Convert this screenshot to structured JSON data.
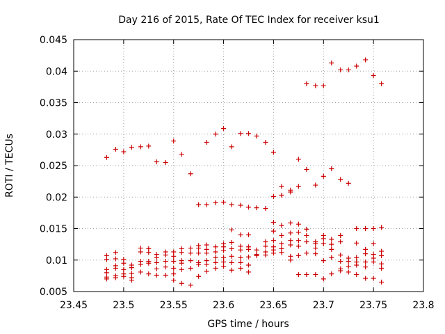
{
  "chart_data": {
    "type": "scatter",
    "title": "Day 216 of 2015, Rate Of TEC Index for receiver ksu1",
    "xlabel": "GPS time / hours",
    "ylabel": "ROTI / TECUs",
    "xlim": [
      23.45,
      23.8
    ],
    "ylim": [
      0.005,
      0.045
    ],
    "xticks": [
      "23.45",
      "23.5",
      "23.55",
      "23.6",
      "23.65",
      "23.7",
      "23.75",
      "23.8"
    ],
    "yticks": [
      "0.005",
      "0.01",
      "0.015",
      "0.02",
      "0.025",
      "0.03",
      "0.035",
      "0.04",
      "0.045"
    ],
    "grid": true,
    "marker_color": "#cc0000",
    "series": [
      {
        "name": "ksu1",
        "points": [
          [
            23.483,
            0.0263
          ],
          [
            23.492,
            0.0276
          ],
          [
            23.5,
            0.0272
          ],
          [
            23.508,
            0.0279
          ],
          [
            23.517,
            0.028
          ],
          [
            23.525,
            0.0281
          ],
          [
            23.533,
            0.0256
          ],
          [
            23.542,
            0.0255
          ],
          [
            23.55,
            0.0289
          ],
          [
            23.558,
            0.0268
          ],
          [
            23.567,
            0.0237
          ],
          [
            23.575,
            0.0188
          ],
          [
            23.583,
            0.0188
          ],
          [
            23.583,
            0.0287
          ],
          [
            23.592,
            0.0191
          ],
          [
            23.592,
            0.03
          ],
          [
            23.6,
            0.0192
          ],
          [
            23.6,
            0.0309
          ],
          [
            23.608,
            0.0188
          ],
          [
            23.608,
            0.028
          ],
          [
            23.617,
            0.0187
          ],
          [
            23.617,
            0.0301
          ],
          [
            23.625,
            0.0184
          ],
          [
            23.625,
            0.0301
          ],
          [
            23.633,
            0.0183
          ],
          [
            23.633,
            0.0297
          ],
          [
            23.642,
            0.0182
          ],
          [
            23.642,
            0.0287
          ],
          [
            23.65,
            0.0201
          ],
          [
            23.65,
            0.0271
          ],
          [
            23.658,
            0.0203
          ],
          [
            23.658,
            0.0217
          ],
          [
            23.667,
            0.0208
          ],
          [
            23.667,
            0.0211
          ],
          [
            23.675,
            0.0217
          ],
          [
            23.675,
            0.026
          ],
          [
            23.683,
            0.0244
          ],
          [
            23.683,
            0.038
          ],
          [
            23.692,
            0.0219
          ],
          [
            23.692,
            0.0377
          ],
          [
            23.7,
            0.0233
          ],
          [
            23.7,
            0.0377
          ],
          [
            23.708,
            0.0245
          ],
          [
            23.708,
            0.0413
          ],
          [
            23.717,
            0.0228
          ],
          [
            23.717,
            0.0402
          ],
          [
            23.725,
            0.0222
          ],
          [
            23.725,
            0.0402
          ],
          [
            23.733,
            0.0408
          ],
          [
            23.742,
            0.0418
          ],
          [
            23.75,
            0.0393
          ],
          [
            23.758,
            0.038
          ],
          [
            23.483,
            0.0107
          ],
          [
            23.483,
            0.0101
          ],
          [
            23.483,
            0.0085
          ],
          [
            23.483,
            0.008
          ],
          [
            23.483,
            0.0073
          ],
          [
            23.483,
            0.007
          ],
          [
            23.492,
            0.0112
          ],
          [
            23.492,
            0.0102
          ],
          [
            23.492,
            0.0091
          ],
          [
            23.492,
            0.0087
          ],
          [
            23.492,
            0.0075
          ],
          [
            23.492,
            0.0072
          ],
          [
            23.5,
            0.0101
          ],
          [
            23.5,
            0.0095
          ],
          [
            23.5,
            0.0085
          ],
          [
            23.5,
            0.0078
          ],
          [
            23.5,
            0.0074
          ],
          [
            23.508,
            0.0092
          ],
          [
            23.508,
            0.0088
          ],
          [
            23.508,
            0.0079
          ],
          [
            23.508,
            0.0072
          ],
          [
            23.508,
            0.0068
          ],
          [
            23.517,
            0.0119
          ],
          [
            23.517,
            0.0113
          ],
          [
            23.517,
            0.0098
          ],
          [
            23.517,
            0.0093
          ],
          [
            23.517,
            0.0081
          ],
          [
            23.525,
            0.0118
          ],
          [
            23.525,
            0.0112
          ],
          [
            23.525,
            0.0098
          ],
          [
            23.525,
            0.0095
          ],
          [
            23.525,
            0.0078
          ],
          [
            23.533,
            0.0109
          ],
          [
            23.533,
            0.0104
          ],
          [
            23.533,
            0.0096
          ],
          [
            23.533,
            0.0086
          ],
          [
            23.533,
            0.0076
          ],
          [
            23.542,
            0.0113
          ],
          [
            23.542,
            0.0108
          ],
          [
            23.542,
            0.0098
          ],
          [
            23.542,
            0.0089
          ],
          [
            23.542,
            0.0076
          ],
          [
            23.55,
            0.0113
          ],
          [
            23.55,
            0.0106
          ],
          [
            23.55,
            0.0098
          ],
          [
            23.55,
            0.0087
          ],
          [
            23.55,
            0.0078
          ],
          [
            23.55,
            0.0068
          ],
          [
            23.558,
            0.0118
          ],
          [
            23.558,
            0.0112
          ],
          [
            23.558,
            0.0099
          ],
          [
            23.558,
            0.0095
          ],
          [
            23.558,
            0.0085
          ],
          [
            23.558,
            0.0063
          ],
          [
            23.567,
            0.0119
          ],
          [
            23.567,
            0.0111
          ],
          [
            23.567,
            0.0099
          ],
          [
            23.567,
            0.0087
          ],
          [
            23.567,
            0.006
          ],
          [
            23.575,
            0.0123
          ],
          [
            23.575,
            0.0119
          ],
          [
            23.575,
            0.0111
          ],
          [
            23.575,
            0.0096
          ],
          [
            23.575,
            0.0093
          ],
          [
            23.575,
            0.0074
          ],
          [
            23.583,
            0.0124
          ],
          [
            23.583,
            0.0117
          ],
          [
            23.583,
            0.0111
          ],
          [
            23.583,
            0.0099
          ],
          [
            23.583,
            0.0093
          ],
          [
            23.583,
            0.0082
          ],
          [
            23.592,
            0.0121
          ],
          [
            23.592,
            0.0113
          ],
          [
            23.592,
            0.0104
          ],
          [
            23.592,
            0.0096
          ],
          [
            23.592,
            0.0087
          ],
          [
            23.6,
            0.0126
          ],
          [
            23.6,
            0.0121
          ],
          [
            23.6,
            0.0115
          ],
          [
            23.6,
            0.0104
          ],
          [
            23.6,
            0.0097
          ],
          [
            23.6,
            0.009
          ],
          [
            23.608,
            0.0148
          ],
          [
            23.608,
            0.0128
          ],
          [
            23.608,
            0.0118
          ],
          [
            23.608,
            0.0106
          ],
          [
            23.608,
            0.0096
          ],
          [
            23.608,
            0.0084
          ],
          [
            23.617,
            0.014
          ],
          [
            23.617,
            0.0122
          ],
          [
            23.617,
            0.0116
          ],
          [
            23.617,
            0.0104
          ],
          [
            23.617,
            0.0096
          ],
          [
            23.617,
            0.0087
          ],
          [
            23.625,
            0.014
          ],
          [
            23.625,
            0.0121
          ],
          [
            23.625,
            0.0117
          ],
          [
            23.625,
            0.0105
          ],
          [
            23.625,
            0.0092
          ],
          [
            23.625,
            0.0081
          ],
          [
            23.633,
            0.0116
          ],
          [
            23.633,
            0.0109
          ],
          [
            23.633,
            0.0107
          ],
          [
            23.642,
            0.0129
          ],
          [
            23.642,
            0.0122
          ],
          [
            23.642,
            0.0113
          ],
          [
            23.642,
            0.0108
          ],
          [
            23.65,
            0.016
          ],
          [
            23.65,
            0.0146
          ],
          [
            23.65,
            0.0131
          ],
          [
            23.65,
            0.0121
          ],
          [
            23.65,
            0.0116
          ],
          [
            23.65,
            0.0111
          ],
          [
            23.658,
            0.0155
          ],
          [
            23.658,
            0.0139
          ],
          [
            23.658,
            0.0126
          ],
          [
            23.658,
            0.0118
          ],
          [
            23.658,
            0.0112
          ],
          [
            23.667,
            0.0159
          ],
          [
            23.667,
            0.0143
          ],
          [
            23.667,
            0.0131
          ],
          [
            23.667,
            0.0124
          ],
          [
            23.667,
            0.0106
          ],
          [
            23.667,
            0.01
          ],
          [
            23.675,
            0.0157
          ],
          [
            23.675,
            0.0144
          ],
          [
            23.675,
            0.0131
          ],
          [
            23.675,
            0.0122
          ],
          [
            23.675,
            0.0107
          ],
          [
            23.675,
            0.0077
          ],
          [
            23.683,
            0.0149
          ],
          [
            23.683,
            0.0139
          ],
          [
            23.683,
            0.0129
          ],
          [
            23.683,
            0.0111
          ],
          [
            23.683,
            0.0077
          ],
          [
            23.692,
            0.0129
          ],
          [
            23.692,
            0.0126
          ],
          [
            23.692,
            0.0119
          ],
          [
            23.692,
            0.011
          ],
          [
            23.692,
            0.0077
          ],
          [
            23.7,
            0.0139
          ],
          [
            23.7,
            0.0134
          ],
          [
            23.7,
            0.0126
          ],
          [
            23.7,
            0.0099
          ],
          [
            23.7,
            0.007
          ],
          [
            23.708,
            0.0133
          ],
          [
            23.708,
            0.0125
          ],
          [
            23.708,
            0.0117
          ],
          [
            23.708,
            0.0104
          ],
          [
            23.708,
            0.0078
          ],
          [
            23.717,
            0.0139
          ],
          [
            23.717,
            0.0129
          ],
          [
            23.717,
            0.0108
          ],
          [
            23.717,
            0.0098
          ],
          [
            23.717,
            0.0086
          ],
          [
            23.717,
            0.0083
          ],
          [
            23.725,
            0.0103
          ],
          [
            23.725,
            0.0098
          ],
          [
            23.725,
            0.009
          ],
          [
            23.725,
            0.0081
          ],
          [
            23.733,
            0.015
          ],
          [
            23.733,
            0.0127
          ],
          [
            23.733,
            0.0104
          ],
          [
            23.733,
            0.0097
          ],
          [
            23.733,
            0.0092
          ],
          [
            23.733,
            0.0077
          ],
          [
            23.742,
            0.015
          ],
          [
            23.742,
            0.0117
          ],
          [
            23.742,
            0.011
          ],
          [
            23.742,
            0.0097
          ],
          [
            23.742,
            0.0089
          ],
          [
            23.742,
            0.0071
          ],
          [
            23.75,
            0.015
          ],
          [
            23.75,
            0.0126
          ],
          [
            23.75,
            0.0109
          ],
          [
            23.75,
            0.0103
          ],
          [
            23.75,
            0.0097
          ],
          [
            23.75,
            0.0071
          ],
          [
            23.758,
            0.0152
          ],
          [
            23.758,
            0.0114
          ],
          [
            23.758,
            0.0107
          ],
          [
            23.758,
            0.0094
          ],
          [
            23.758,
            0.0087
          ],
          [
            23.758,
            0.0065
          ]
        ]
      }
    ]
  }
}
